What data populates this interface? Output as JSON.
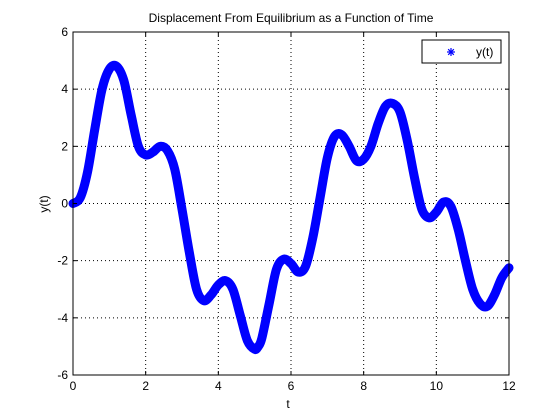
{
  "chart_data": {
    "type": "line",
    "title": "Displacement From Equilibrium as a Function of Time",
    "xlabel": "t",
    "ylabel": "y(t)",
    "xlim": [
      0,
      12
    ],
    "ylim": [
      -6,
      6
    ],
    "xticks": [
      0,
      2,
      4,
      6,
      8,
      10,
      12
    ],
    "yticks": [
      -6,
      -4,
      -2,
      0,
      2,
      4,
      6
    ],
    "grid": true,
    "legend_position": "top-right",
    "series": [
      {
        "name": "y(t)",
        "color": "#0000ff",
        "marker": "asterisk",
        "x": [
          0,
          0.2,
          0.4,
          0.6,
          0.8,
          1.0,
          1.2,
          1.4,
          1.6,
          1.8,
          2.0,
          2.2,
          2.4,
          2.6,
          2.8,
          3.0,
          3.2,
          3.4,
          3.6,
          3.8,
          4.0,
          4.2,
          4.4,
          4.6,
          4.8,
          5.0,
          5.1,
          5.2,
          5.4,
          5.6,
          5.8,
          6.0,
          6.2,
          6.4,
          6.6,
          6.8,
          7.0,
          7.2,
          7.4,
          7.6,
          7.8,
          8.0,
          8.2,
          8.4,
          8.6,
          8.8,
          9.0,
          9.2,
          9.4,
          9.6,
          9.8,
          10.0,
          10.2,
          10.4,
          10.6,
          10.8,
          11.0,
          11.2,
          11.4,
          11.6,
          11.8,
          12.0
        ],
        "y": [
          0,
          0.2,
          1.1,
          2.6,
          4.0,
          4.7,
          4.8,
          4.3,
          3.1,
          2.0,
          1.7,
          1.8,
          2.0,
          1.85,
          1.2,
          -0.2,
          -1.7,
          -3.0,
          -3.4,
          -3.2,
          -2.85,
          -2.7,
          -3.0,
          -3.9,
          -4.8,
          -5.1,
          -5.0,
          -4.7,
          -3.5,
          -2.3,
          -1.95,
          -2.1,
          -2.4,
          -2.2,
          -1.2,
          0.2,
          1.6,
          2.35,
          2.4,
          2.0,
          1.5,
          1.55,
          2.0,
          2.8,
          3.4,
          3.5,
          3.2,
          2.2,
          0.9,
          -0.2,
          -0.5,
          -0.3,
          0.05,
          -0.1,
          -0.9,
          -2.0,
          -3.0,
          -3.5,
          -3.6,
          -3.2,
          -2.6,
          -2.25
        ]
      }
    ]
  }
}
